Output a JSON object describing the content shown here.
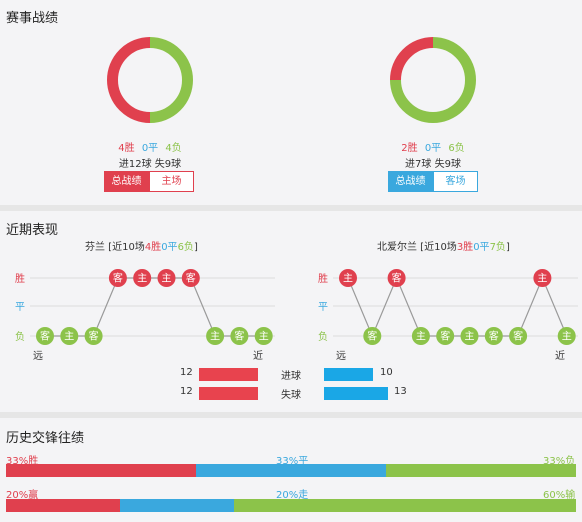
{
  "colors": {
    "win": "#e0404e",
    "draw": "#3aa8de",
    "loss": "#8cc34a",
    "home_goal": "#e8434e",
    "away_goal": "#1aa7e6"
  },
  "competition": {
    "title": "赛事战绩",
    "left": {
      "wins": "4胜",
      "draws": "0平",
      "losses": "4负",
      "goals": "进12球 失9球",
      "win_count": 4,
      "draw_count": 0,
      "loss_count": 4,
      "tab_active": "总战绩",
      "tab_other": "主场"
    },
    "right": {
      "wins": "2胜",
      "draws": "0平",
      "losses": "6负",
      "goals": "进7球 失9球",
      "win_count": 2,
      "draw_count": 0,
      "loss_count": 6,
      "tab_active": "总战绩",
      "tab_other": "客场"
    }
  },
  "recent": {
    "title": "近期表现",
    "row_labels": [
      "胜",
      "平",
      "负"
    ],
    "far_label": "远",
    "near_label": "近",
    "left": {
      "team": "芬兰",
      "summary_pre": " [近10场",
      "wins": "4胜",
      "draws": "0平",
      "losses": "6负",
      "summary_post": "]",
      "matches": [
        {
          "venue": "客",
          "result": "负"
        },
        {
          "venue": "主",
          "result": "负"
        },
        {
          "venue": "客",
          "result": "负"
        },
        {
          "venue": "客",
          "result": "胜"
        },
        {
          "venue": "主",
          "result": "胜"
        },
        {
          "venue": "主",
          "result": "胜"
        },
        {
          "venue": "客",
          "result": "胜"
        },
        {
          "venue": "主",
          "result": "负"
        },
        {
          "venue": "客",
          "result": "负"
        },
        {
          "venue": "主",
          "result": "负"
        }
      ]
    },
    "right": {
      "team": "北爱尔兰",
      "summary_pre": " [近10场",
      "wins": "3胜",
      "draws": "0平",
      "losses": "7负",
      "summary_post": "]",
      "matches": [
        {
          "venue": "主",
          "result": "胜"
        },
        {
          "venue": "客",
          "result": "负"
        },
        {
          "venue": "客",
          "result": "胜"
        },
        {
          "venue": "主",
          "result": "负"
        },
        {
          "venue": "客",
          "result": "负"
        },
        {
          "venue": "主",
          "result": "负"
        },
        {
          "venue": "客",
          "result": "负"
        },
        {
          "venue": "客",
          "result": "负"
        },
        {
          "venue": "主",
          "result": "胜"
        },
        {
          "venue": "主",
          "result": "负"
        }
      ]
    },
    "goals": {
      "scored_label": "进球",
      "conceded_label": "失球",
      "left_scored": 12,
      "left_conceded": 12,
      "right_scored": 10,
      "right_conceded": 13,
      "left_scored_text": "12",
      "left_conceded_text": "12",
      "right_scored_text": "10",
      "right_conceded_text": "13"
    }
  },
  "history": {
    "title": "历史交锋往绩",
    "row1": {
      "left_label": "33%胜",
      "mid_label": "33%平",
      "right_label": "33%负",
      "values": [
        33.3,
        33.3,
        33.3
      ]
    },
    "row2": {
      "left_label": "20%赢",
      "mid_label": "20%走",
      "right_label": "60%输",
      "values": [
        20,
        20,
        60
      ]
    }
  }
}
